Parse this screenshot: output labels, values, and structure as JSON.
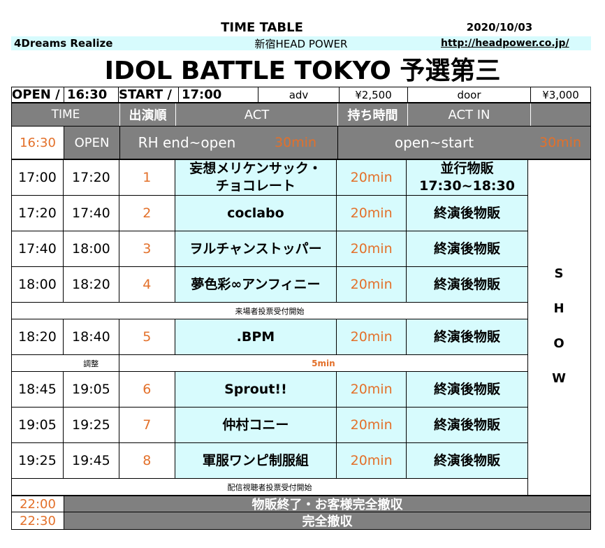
{
  "header": {
    "title": "TIME TABLE",
    "date": "2020/10/03",
    "organizer": "4Dreams Realize",
    "venue": "新宿HEAD POWER",
    "url": "http://headpower.co.jp/",
    "event_title": "IDOL BATTLE TOKYO 予選第三"
  },
  "info": {
    "open_label": "OPEN /",
    "open_time": "16:30",
    "start_label": "START /",
    "start_time": "17:00",
    "adv_label": "adv",
    "adv_price": "¥2,500",
    "door_label": "door",
    "door_price": "¥3,000"
  },
  "columns": {
    "time": "TIME",
    "order": "出演順",
    "act": "ACT",
    "duration": "持ち時間",
    "act_in": "ACT IN"
  },
  "open_row": {
    "time": "16:30",
    "label": "OPEN",
    "rh": "RH end~open",
    "rh_dur": "30min",
    "open_start": "open~start",
    "open_start_dur": "30min"
  },
  "rows": [
    {
      "start": "17:00",
      "end": "17:20",
      "order": "1",
      "act_line1": "妄想メリケンサック・",
      "act_line2": "チョコレート",
      "duration": "20min",
      "merch_line1": "並行物販",
      "merch_line2": "17:30~18:30"
    },
    {
      "start": "17:20",
      "end": "17:40",
      "order": "2",
      "act": "coclabo",
      "duration": "20min",
      "merch": "終演後物販"
    },
    {
      "start": "17:40",
      "end": "18:00",
      "order": "3",
      "act": "ヲルチャンストッパー",
      "duration": "20min",
      "merch": "終演後物販"
    },
    {
      "start": "18:00",
      "end": "18:20",
      "order": "4",
      "act": "夢色彩∞アンフィニー",
      "duration": "20min",
      "merch": "終演後物販"
    },
    {
      "start": "18:20",
      "end": "18:40",
      "order": "5",
      "act": ".BPM",
      "duration": "20min",
      "merch": "終演後物販"
    },
    {
      "start": "18:45",
      "end": "19:05",
      "order": "6",
      "act": "Sprout!!",
      "duration": "20min",
      "merch": "終演後物販"
    },
    {
      "start": "19:05",
      "end": "19:25",
      "order": "7",
      "act": "仲村コニー",
      "duration": "20min",
      "merch": "終演後物販"
    },
    {
      "start": "19:25",
      "end": "19:45",
      "order": "8",
      "act": "軍服ワンピ制服組",
      "duration": "20min",
      "merch": "終演後物販"
    }
  ],
  "notes": {
    "venue_vote": "来場者投票受付開始",
    "adjust": "調整",
    "adjust_dur": "5min",
    "stream_vote": "配信視聴者投票受付開始"
  },
  "show_letters": [
    "S",
    "H",
    "O",
    "W"
  ],
  "footer": [
    {
      "time": "22:00",
      "text": "物販終了・お客様完全撤収"
    },
    {
      "time": "22:30",
      "text": "完全撤収"
    }
  ],
  "colors": {
    "accent_orange": "#e3702a",
    "cyan": "#d7fbfd",
    "gray": "#808080"
  }
}
